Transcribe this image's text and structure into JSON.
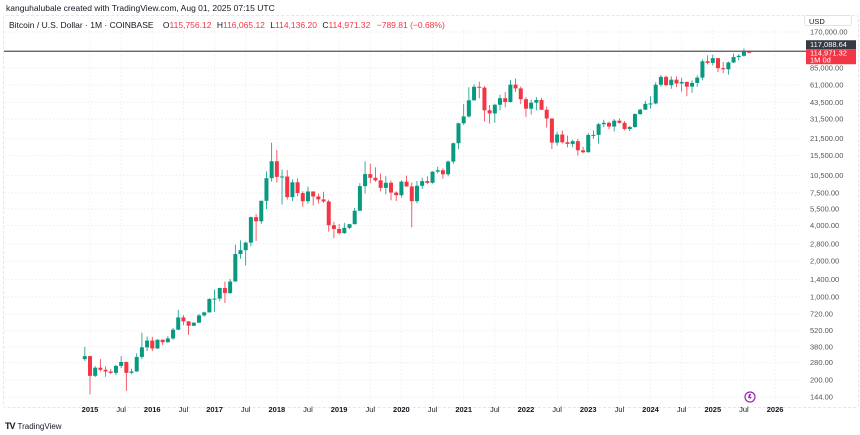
{
  "header": {
    "credit": "kanguhalubale created with TradingView.com, Aug 01, 2025 07:15 UTC",
    "symbol": "Bitcoin / U.S. Dollar · 1M · COINBASE",
    "open_label": "O",
    "open": "115,756.12",
    "high_label": "H",
    "high": "116,065.12",
    "low_label": "L",
    "low": "114,136.20",
    "close_label": "C",
    "close": "114,971.32",
    "change": "−789.81 (−0.68%)"
  },
  "currency": "USD",
  "price_labels": {
    "line_price": "117,088.64",
    "last_price": "114,971.32",
    "countdown": "1M 0d"
  },
  "footer": {
    "brand": "TradingView"
  },
  "colors": {
    "up": "#089981",
    "down": "#f23645",
    "line": "#5d4f4f",
    "line_label": "#363a45",
    "event_icon": "#9c27b0"
  },
  "icons": {
    "event": "events-icon",
    "logo": "tradingview-logo-icon"
  },
  "chart_data": {
    "type": "candlestick",
    "scale": "log",
    "grid": true,
    "horizontal_line": 117088.64,
    "y_ticks": [
      170000,
      85000,
      61000,
      43500,
      31500,
      21500,
      15500,
      10500,
      7500,
      5500,
      4000,
      2800,
      2000,
      1400,
      1000,
      720,
      520,
      380,
      280,
      200,
      144
    ],
    "y_tick_labels": [
      "170,000.00",
      "85,000.00",
      "61,000.00",
      "43,500.00",
      "31,500.00",
      "21,500.00",
      "15,500.00",
      "10,500.00",
      "7,500.00",
      "5,500.00",
      "4,000.00",
      "2,800.00",
      "2,000.00",
      "1,400.00",
      "1,000.00",
      "720.00",
      "520.00",
      "380.00",
      "280.00",
      "200.00",
      "144.00"
    ],
    "x_ticks": [
      {
        "label": "2015",
        "date": "2015-01"
      },
      {
        "label": "Jul",
        "date": "2015-07"
      },
      {
        "label": "2016",
        "date": "2016-01"
      },
      {
        "label": "Jul",
        "date": "2016-07"
      },
      {
        "label": "2017",
        "date": "2017-01"
      },
      {
        "label": "Jul",
        "date": "2017-07"
      },
      {
        "label": "2018",
        "date": "2018-01"
      },
      {
        "label": "Jul",
        "date": "2018-07"
      },
      {
        "label": "2019",
        "date": "2019-01"
      },
      {
        "label": "Jul",
        "date": "2019-07"
      },
      {
        "label": "2020",
        "date": "2020-01"
      },
      {
        "label": "Jul",
        "date": "2020-07"
      },
      {
        "label": "2021",
        "date": "2021-01"
      },
      {
        "label": "Jul",
        "date": "2021-07"
      },
      {
        "label": "2022",
        "date": "2022-01"
      },
      {
        "label": "Jul",
        "date": "2022-07"
      },
      {
        "label": "2023",
        "date": "2023-01"
      },
      {
        "label": "Jul",
        "date": "2023-07"
      },
      {
        "label": "2024",
        "date": "2024-01"
      },
      {
        "label": "Jul",
        "date": "2024-07"
      },
      {
        "label": "2025",
        "date": "2025-01"
      },
      {
        "label": "Jul",
        "date": "2025-07"
      },
      {
        "label": "2026",
        "date": "2026-01"
      }
    ],
    "start": "2014-12",
    "ohlc": [
      [
        300,
        380,
        290,
        318
      ],
      [
        318,
        320,
        152,
        217
      ],
      [
        217,
        262,
        212,
        254
      ],
      [
        254,
        300,
        236,
        244
      ],
      [
        244,
        261,
        213,
        236
      ],
      [
        236,
        248,
        225,
        230
      ],
      [
        230,
        268,
        220,
        263
      ],
      [
        263,
        318,
        252,
        284
      ],
      [
        284,
        286,
        162,
        230
      ],
      [
        230,
        249,
        225,
        236
      ],
      [
        236,
        335,
        235,
        313
      ],
      [
        313,
        500,
        300,
        377
      ],
      [
        377,
        465,
        350,
        430
      ],
      [
        430,
        463,
        350,
        369
      ],
      [
        369,
        440,
        365,
        437
      ],
      [
        437,
        440,
        395,
        416
      ],
      [
        416,
        468,
        414,
        448
      ],
      [
        448,
        549,
        437,
        531
      ],
      [
        531,
        780,
        525,
        673
      ],
      [
        673,
        704,
        580,
        624
      ],
      [
        624,
        625,
        480,
        573
      ],
      [
        573,
        612,
        570,
        608
      ],
      [
        608,
        722,
        605,
        700
      ],
      [
        700,
        752,
        685,
        742
      ],
      [
        742,
        975,
        740,
        963
      ],
      [
        963,
        1150,
        750,
        970
      ],
      [
        970,
        1200,
        920,
        1190
      ],
      [
        1190,
        1350,
        890,
        1080
      ],
      [
        1080,
        1420,
        1060,
        1350
      ],
      [
        1350,
        2760,
        1350,
        2300
      ],
      [
        2300,
        3000,
        2100,
        2480
      ],
      [
        2480,
        2920,
        1840,
        2870
      ],
      [
        2870,
        4750,
        2670,
        4700
      ],
      [
        4700,
        4980,
        2970,
        4340
      ],
      [
        4340,
        6470,
        4110,
        6450
      ],
      [
        6450,
        11400,
        5500,
        10000
      ],
      [
        10000,
        19890,
        9380,
        13880
      ],
      [
        13880,
        17250,
        9200,
        10260
      ],
      [
        10260,
        11800,
        6000,
        10330
      ],
      [
        10330,
        11700,
        6600,
        6930
      ],
      [
        6930,
        9770,
        6430,
        9240
      ],
      [
        9240,
        10000,
        7040,
        7500
      ],
      [
        7500,
        7780,
        5750,
        6400
      ],
      [
        6400,
        8500,
        6100,
        7730
      ],
      [
        7730,
        7750,
        5880,
        7020
      ],
      [
        7020,
        7410,
        6100,
        6630
      ],
      [
        6630,
        7680,
        6180,
        6370
      ],
      [
        6370,
        6590,
        3550,
        4020
      ],
      [
        4020,
        4300,
        3130,
        3740
      ],
      [
        3740,
        4110,
        3350,
        3450
      ],
      [
        3450,
        4210,
        3390,
        3820
      ],
      [
        3820,
        4130,
        3730,
        4100
      ],
      [
        4100,
        5630,
        4100,
        5320
      ],
      [
        5320,
        9090,
        5330,
        8570
      ],
      [
        8570,
        13880,
        7440,
        10820
      ],
      [
        10820,
        13200,
        9070,
        10080
      ],
      [
        10080,
        12330,
        9320,
        9590
      ],
      [
        9590,
        10950,
        7730,
        8290
      ],
      [
        8290,
        10370,
        7300,
        9150
      ],
      [
        9150,
        9520,
        6520,
        7570
      ],
      [
        7570,
        7750,
        6430,
        7190
      ],
      [
        7190,
        9580,
        6870,
        9350
      ],
      [
        9350,
        10500,
        8450,
        8520
      ],
      [
        8520,
        9190,
        3860,
        6410
      ],
      [
        6410,
        9460,
        6150,
        8630
      ],
      [
        8630,
        10070,
        8110,
        9450
      ],
      [
        9450,
        10380,
        8900,
        9140
      ],
      [
        9140,
        11450,
        8990,
        11350
      ],
      [
        11350,
        12480,
        10990,
        11660
      ],
      [
        11660,
        12090,
        9880,
        10780
      ],
      [
        10780,
        14100,
        10370,
        13800
      ],
      [
        13800,
        19900,
        13200,
        19700
      ],
      [
        19700,
        29300,
        17570,
        28990
      ],
      [
        28990,
        41990,
        28130,
        33110
      ],
      [
        33110,
        58350,
        32300,
        45240
      ],
      [
        45240,
        61790,
        45000,
        58800
      ],
      [
        58800,
        64900,
        47000,
        57800
      ],
      [
        57800,
        59600,
        30000,
        37300
      ],
      [
        37300,
        41330,
        28800,
        35040
      ],
      [
        35040,
        42300,
        29300,
        41500
      ],
      [
        41500,
        50500,
        37300,
        47100
      ],
      [
        47100,
        52950,
        39600,
        43800
      ],
      [
        43800,
        67000,
        43300,
        61300
      ],
      [
        61300,
        69000,
        53300,
        57000
      ],
      [
        57000,
        59100,
        42000,
        46200
      ],
      [
        46200,
        48000,
        32900,
        38480
      ],
      [
        38480,
        45800,
        34300,
        43190
      ],
      [
        43190,
        48200,
        37200,
        45530
      ],
      [
        45530,
        47450,
        37700,
        37640
      ],
      [
        37640,
        40000,
        26700,
        31800
      ],
      [
        31800,
        31900,
        17600,
        19930
      ],
      [
        19930,
        24670,
        18780,
        23300
      ],
      [
        23300,
        25200,
        19520,
        20050
      ],
      [
        20050,
        22800,
        18150,
        19430
      ],
      [
        19430,
        21080,
        18200,
        20490
      ],
      [
        20490,
        21480,
        15480,
        17170
      ],
      [
        17170,
        18390,
        16250,
        16530
      ],
      [
        16530,
        23960,
        16500,
        23130
      ],
      [
        23130,
        25250,
        21400,
        23150
      ],
      [
        23150,
        29190,
        19550,
        28470
      ],
      [
        28470,
        31000,
        26940,
        29250
      ],
      [
        29250,
        29820,
        25810,
        27200
      ],
      [
        27200,
        31430,
        24750,
        30470
      ],
      [
        30470,
        31800,
        28860,
        29230
      ],
      [
        29230,
        30200,
        25300,
        25940
      ],
      [
        25940,
        27500,
        24900,
        26970
      ],
      [
        26970,
        35200,
        26550,
        34650
      ],
      [
        34650,
        38420,
        34100,
        37720
      ],
      [
        37720,
        44700,
        37620,
        42270
      ],
      [
        42270,
        48970,
        38500,
        42580
      ],
      [
        42580,
        64000,
        41880,
        61180
      ],
      [
        61180,
        73800,
        59000,
        71290
      ],
      [
        71290,
        72800,
        59600,
        60640
      ],
      [
        60640,
        71980,
        56500,
        67500
      ],
      [
        67500,
        71990,
        58400,
        62700
      ],
      [
        62700,
        70000,
        53500,
        64600
      ],
      [
        64600,
        65000,
        49000,
        58970
      ],
      [
        58970,
        66500,
        52550,
        63330
      ],
      [
        63330,
        73600,
        58900,
        70200
      ],
      [
        70200,
        99800,
        66800,
        96400
      ],
      [
        96400,
        108300,
        90500,
        93400
      ],
      [
        93400,
        109350,
        89200,
        102400
      ],
      [
        102400,
        102500,
        78200,
        84350
      ],
      [
        84350,
        95000,
        76600,
        82550
      ],
      [
        82550,
        95750,
        74400,
        94200
      ],
      [
        94200,
        111900,
        93300,
        104600
      ],
      [
        104600,
        110600,
        98200,
        107150
      ],
      [
        107150,
        123200,
        105100,
        115760
      ],
      [
        115756.12,
        116065.12,
        114136.2,
        114971.32
      ]
    ]
  }
}
